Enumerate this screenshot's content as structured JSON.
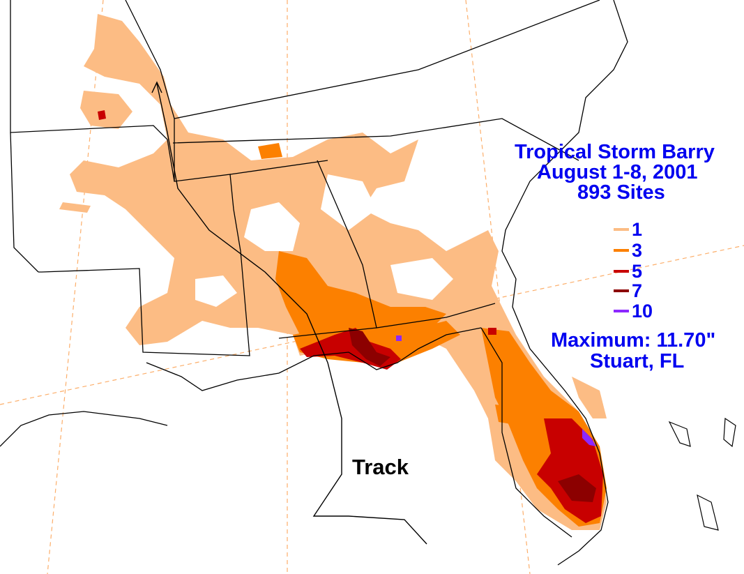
{
  "title": {
    "line1": "Tropical Storm Barry",
    "line2": "August 1-8, 2001",
    "line3": "893 Sites"
  },
  "legend": [
    {
      "label": "1",
      "color": "#fcbc84"
    },
    {
      "label": "3",
      "color": "#fc8000"
    },
    {
      "label": "5",
      "color": "#c80000"
    },
    {
      "label": "7",
      "color": "#8c0000"
    },
    {
      "label": "10",
      "color": "#8c28ff"
    }
  ],
  "maximum": {
    "line1": "Maximum: 11.70\"",
    "line2": "Stuart, FL"
  },
  "track": {
    "label": "Track"
  },
  "colors": {
    "title_text": "#0000f0",
    "borders": "#000000",
    "graticule": "#fcae6a",
    "background": "#ffffff"
  }
}
